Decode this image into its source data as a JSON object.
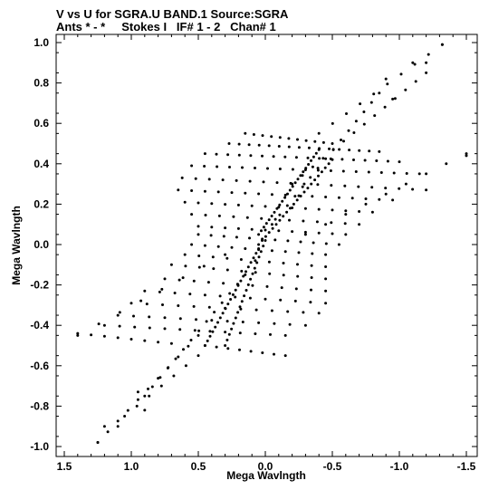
{
  "header": {
    "line1": "V vs U for SGRA.U BAND.1   Source:SGRA",
    "line2": "Ants * - *     Stokes I   IF# 1 - 2   Chan# 1"
  },
  "chart_data": {
    "type": "scatter",
    "title": "V vs U for SGRA.U BAND.1   Source:SGRA",
    "subtitle": "Ants * - *     Stokes I   IF# 1 - 2   Chan# 1",
    "xlabel": "Mega Wavlngth",
    "ylabel": "Mega Wavlngth",
    "xlim": [
      1.5,
      -1.55
    ],
    "ylim": [
      -1.05,
      1.05
    ],
    "x_reversed": true,
    "xticks": [
      1.5,
      1.0,
      0.5,
      0.0,
      -0.5,
      -1.0,
      -1.5
    ],
    "xtick_labels": [
      "1.5",
      "1.0",
      "0.5",
      "0.0",
      "-0.5",
      "-1.0",
      "-1.5"
    ],
    "yticks": [
      1.0,
      0.8,
      0.6,
      0.4,
      0.2,
      0.0,
      -0.2,
      -0.4,
      -0.6,
      -0.8,
      -1.0
    ],
    "ytick_labels": [
      "1.0",
      "0.8",
      "0.6",
      "0.4",
      "0.2",
      "0.0",
      "-0.2",
      "-0.4",
      "-0.6",
      "-0.8",
      "-1.0"
    ],
    "grid": false,
    "marker_color": "#000000",
    "point_groups": [
      {
        "kind": "segment",
        "from": [
          0.15,
          0.55
        ],
        "to": [
          -0.5,
          0.5
        ],
        "n": 11
      },
      {
        "kind": "segment",
        "from": [
          0.27,
          0.5
        ],
        "to": [
          -0.85,
          0.46
        ],
        "n": 16
      },
      {
        "kind": "segment",
        "from": [
          0.45,
          0.45
        ],
        "to": [
          -1.0,
          0.41
        ],
        "n": 18
      },
      {
        "kind": "segment",
        "from": [
          0.55,
          0.39
        ],
        "to": [
          -1.15,
          0.35
        ],
        "n": 19
      },
      {
        "kind": "segment",
        "from": [
          0.62,
          0.33
        ],
        "to": [
          -1.2,
          0.27
        ],
        "n": 19
      },
      {
        "kind": "segment",
        "from": [
          0.65,
          0.27
        ],
        "to": [
          -0.95,
          0.22
        ],
        "n": 17
      },
      {
        "kind": "segment",
        "from": [
          0.6,
          0.21
        ],
        "to": [
          -0.8,
          0.16
        ],
        "n": 15
      },
      {
        "kind": "segment",
        "from": [
          0.55,
          0.15
        ],
        "to": [
          -0.7,
          0.1
        ],
        "n": 13
      },
      {
        "kind": "segment",
        "from": [
          0.5,
          0.09
        ],
        "to": [
          -0.6,
          0.05
        ],
        "n": 12
      },
      {
        "kind": "segment",
        "from": [
          0.5,
          0.05
        ],
        "to": [
          -0.55,
          0.0
        ],
        "n": 12
      },
      {
        "kind": "segment",
        "from": [
          0.55,
          0.0
        ],
        "to": [
          -0.45,
          -0.05
        ],
        "n": 11
      },
      {
        "kind": "segment",
        "from": [
          0.6,
          -0.05
        ],
        "to": [
          -0.45,
          -0.11
        ],
        "n": 11
      },
      {
        "kind": "segment",
        "from": [
          0.7,
          -0.1
        ],
        "to": [
          -0.45,
          -0.17
        ],
        "n": 12
      },
      {
        "kind": "segment",
        "from": [
          0.75,
          -0.17
        ],
        "to": [
          -0.45,
          -0.23
        ],
        "n": 12
      },
      {
        "kind": "segment",
        "from": [
          0.9,
          -0.23
        ],
        "to": [
          -0.45,
          -0.29
        ],
        "n": 13
      },
      {
        "kind": "segment",
        "from": [
          1.0,
          -0.29
        ],
        "to": [
          -0.4,
          -0.34
        ],
        "n": 13
      },
      {
        "kind": "segment",
        "from": [
          1.1,
          -0.35
        ],
        "to": [
          -0.3,
          -0.4
        ],
        "n": 13
      },
      {
        "kind": "segment",
        "from": [
          1.2,
          -0.4
        ],
        "to": [
          -0.15,
          -0.45
        ],
        "n": 13
      },
      {
        "kind": "segment",
        "from": [
          1.4,
          -0.44
        ],
        "to": [
          0.7,
          -0.49
        ],
        "n": 8
      },
      {
        "kind": "segment",
        "from": [
          0.45,
          -0.5
        ],
        "to": [
          -0.15,
          -0.55
        ],
        "n": 8
      },
      {
        "kind": "segment",
        "from": [
          0.05,
          0.05
        ],
        "to": [
          -0.4,
          0.47
        ],
        "n": 24
      },
      {
        "kind": "segment",
        "from": [
          0.05,
          0.0
        ],
        "to": [
          -0.5,
          0.42
        ],
        "n": 22
      },
      {
        "kind": "segment",
        "from": [
          -0.05,
          0.1
        ],
        "to": [
          -0.85,
          0.75
        ],
        "n": 15
      },
      {
        "kind": "segment",
        "from": [
          -0.2,
          0.3
        ],
        "to": [
          -1.2,
          0.85
        ],
        "n": 14
      },
      {
        "kind": "segment",
        "from": [
          -0.4,
          0.55
        ],
        "to": [
          -1.32,
          0.99
        ],
        "n": 10
      },
      {
        "kind": "segment",
        "from": [
          0.05,
          -0.02
        ],
        "to": [
          0.45,
          -0.5
        ],
        "n": 22
      },
      {
        "kind": "segment",
        "from": [
          0.0,
          0.02
        ],
        "to": [
          0.3,
          -0.5
        ],
        "n": 20
      },
      {
        "kind": "segment",
        "from": [
          0.15,
          -0.15
        ],
        "to": [
          0.9,
          -0.75
        ],
        "n": 14
      },
      {
        "kind": "segment",
        "from": [
          0.5,
          -0.45
        ],
        "to": [
          1.25,
          -0.98
        ],
        "n": 11
      },
      {
        "kind": "segment",
        "from": [
          0.5,
          -0.55
        ],
        "to": [
          1.05,
          -0.85
        ],
        "n": 7
      },
      {
        "kind": "segment",
        "from": [
          0.3,
          -0.05
        ],
        "to": [
          1.4,
          -0.45
        ],
        "n": 8
      },
      {
        "kind": "segment",
        "from": [
          -0.3,
          0.05
        ],
        "to": [
          -1.5,
          0.45
        ],
        "n": 9
      },
      {
        "kind": "points",
        "xy": [
          [
            1.2,
            -0.9
          ],
          [
            1.1,
            -0.9
          ],
          [
            0.9,
            -0.82
          ],
          [
            0.95,
            -0.73
          ],
          [
            1.25,
            -0.98
          ],
          [
            -1.32,
            0.99
          ],
          [
            -1.2,
            0.9
          ],
          [
            -1.1,
            0.9
          ],
          [
            -0.9,
            0.82
          ],
          [
            -0.95,
            0.72
          ],
          [
            -1.5,
            0.44
          ]
        ]
      }
    ]
  }
}
